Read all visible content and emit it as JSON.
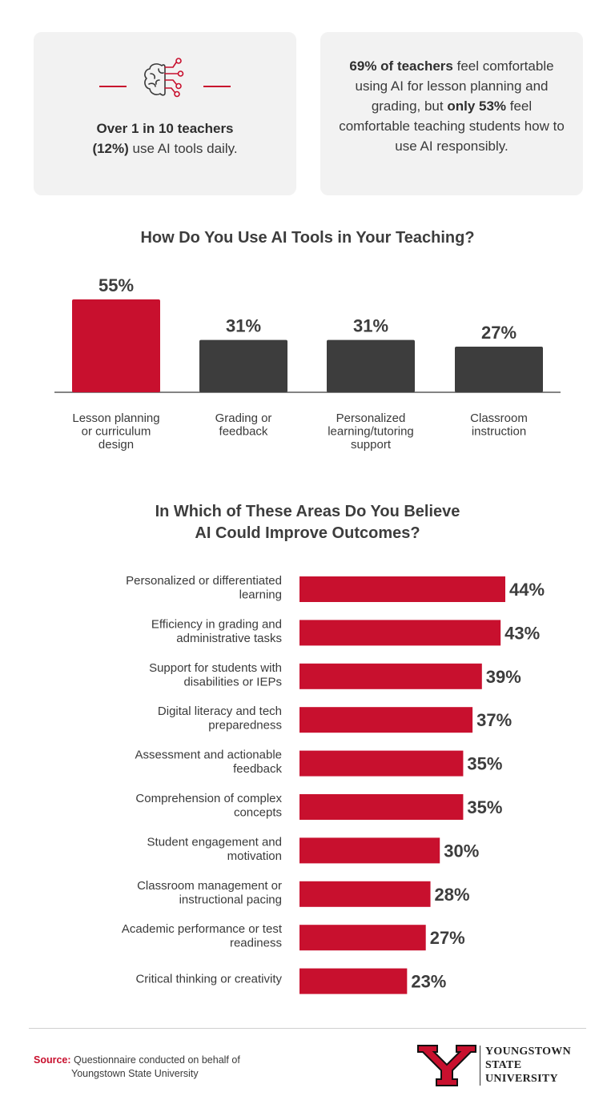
{
  "stats": {
    "left": {
      "icon": "brain-circuit-icon",
      "bold": "Over 1 in 10 teachers",
      "bold2": "(12%)",
      "rest": " use AI tools daily."
    },
    "right": {
      "bold1": "69% of teachers",
      "text1": " feel comfortable using AI for lesson planning and grading, but ",
      "bold2": "only 53%",
      "text2": " feel comfortable teaching students how to use AI responsibly."
    }
  },
  "colors": {
    "accent": "#c8102e",
    "dark": "#3d3d3d",
    "card": "#f2f2f2"
  },
  "chart_data": [
    {
      "type": "bar",
      "title": "How Do You Use AI Tools in Your Teaching?",
      "categories": [
        "Lesson planning or curriculum design",
        "Grading or feedback",
        "Personalized learning/tutoring support",
        "Classroom instruction"
      ],
      "category_lines": [
        [
          "Lesson planning",
          "or curriculum",
          "design"
        ],
        [
          "Grading or",
          "feedback"
        ],
        [
          "Personalized",
          "learning/tutoring",
          "support"
        ],
        [
          "Classroom",
          "instruction"
        ]
      ],
      "values": [
        55,
        31,
        31,
        27
      ],
      "labels": [
        "55%",
        "31%",
        "31%",
        "27%"
      ],
      "highlight_index": 0,
      "unit": "%"
    },
    {
      "type": "bar",
      "orientation": "horizontal",
      "title": "In Which of These Areas Do You Believe AI Could Improve Outcomes?",
      "title_lines": [
        "In Which of These Areas Do You Believe",
        "AI Could Improve Outcomes?"
      ],
      "categories": [
        "Personalized or differentiated learning",
        "Efficiency in grading and administrative tasks",
        "Support for students with disabilities or IEPs",
        "Digital literacy and tech preparedness",
        "Assessment and actionable feedback",
        "Comprehension of complex concepts",
        "Student engagement and motivation",
        "Classroom management or instructional pacing",
        "Academic performance or test readiness",
        "Critical thinking or creativity"
      ],
      "category_lines": [
        [
          "Personalized or differentiated",
          "learning"
        ],
        [
          "Efficiency in grading and",
          "administrative tasks"
        ],
        [
          "Support for students with",
          "disabilities or IEPs"
        ],
        [
          "Digital literacy and tech",
          "preparedness"
        ],
        [
          "Assessment and actionable",
          "feedback"
        ],
        [
          "Comprehension of complex",
          "concepts"
        ],
        [
          "Student engagement and",
          "motivation"
        ],
        [
          "Classroom management or",
          "instructional pacing"
        ],
        [
          "Academic performance or test",
          "readiness"
        ],
        [
          "Critical thinking or creativity"
        ]
      ],
      "values": [
        44,
        43,
        39,
        37,
        35,
        35,
        30,
        28,
        27,
        23
      ],
      "labels": [
        "44%",
        "43%",
        "39%",
        "37%",
        "35%",
        "35%",
        "30%",
        "28%",
        "27%",
        "23%"
      ],
      "unit": "%"
    }
  ],
  "footer": {
    "source_label": "Source:",
    "source_line1": " Questionnaire conducted on behalf of",
    "source_line2": "Youngstown State University",
    "logo_line1": "YOUNGSTOWN",
    "logo_line2": "STATE",
    "logo_line3": "UNIVERSITY"
  }
}
